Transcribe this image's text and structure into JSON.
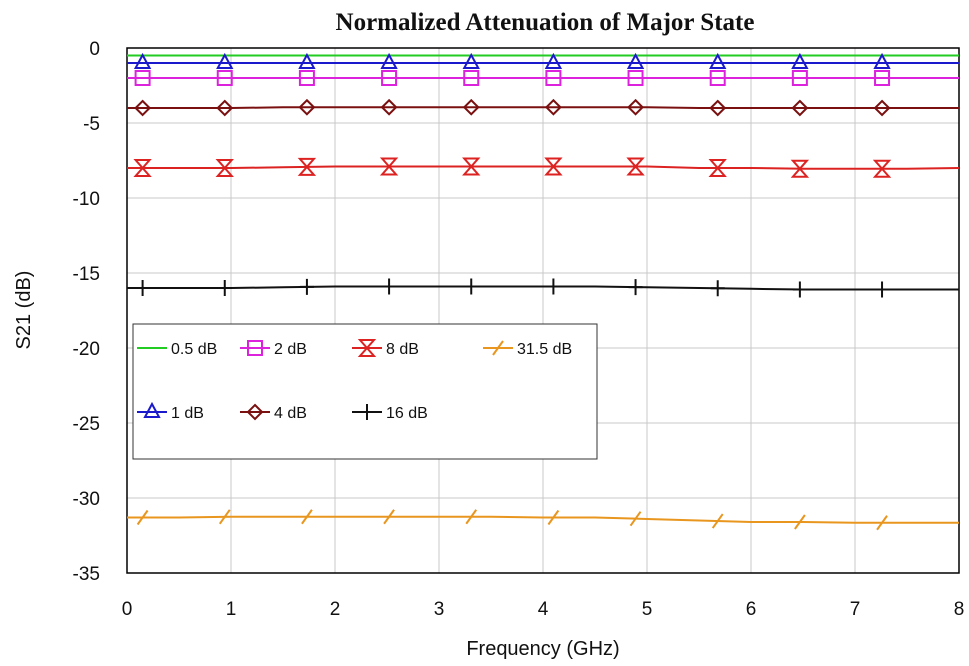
{
  "chart_data": {
    "type": "line",
    "title": "Normalized Attenuation of Major State",
    "xlabel": "Frequency (GHz)",
    "ylabel": "S21 (dB)",
    "xlim": [
      0,
      8
    ],
    "ylim": [
      -35,
      0
    ],
    "x_ticks": [
      "0",
      "1",
      "2",
      "3",
      "4",
      "5",
      "6",
      "7",
      "8"
    ],
    "y_ticks": [
      "0",
      "-5",
      "-10",
      "-15",
      "-20",
      "-25",
      "-30",
      "-35"
    ],
    "grid": true,
    "legend_position": "left",
    "x": [
      0.0,
      0.5,
      1.0,
      1.5,
      2.0,
      2.5,
      3.0,
      3.5,
      4.0,
      4.5,
      5.0,
      5.5,
      6.0,
      6.5,
      7.0,
      7.5,
      8.0
    ],
    "marker_x": [
      0.15,
      0.94,
      1.73,
      2.52,
      3.31,
      4.1,
      4.89,
      5.68,
      6.47,
      7.26
    ],
    "series": [
      {
        "name": "0.5 dB",
        "color": "#22cc22",
        "marker": "none",
        "values": [
          -0.5,
          -0.5,
          -0.5,
          -0.5,
          -0.5,
          -0.5,
          -0.5,
          -0.5,
          -0.5,
          -0.5,
          -0.5,
          -0.5,
          -0.5,
          -0.5,
          -0.5,
          -0.5,
          -0.5
        ]
      },
      {
        "name": "1 dB",
        "color": "#1a1acc",
        "marker": "triangle",
        "values": [
          -1.0,
          -1.0,
          -1.0,
          -1.0,
          -1.0,
          -1.0,
          -1.0,
          -1.0,
          -1.0,
          -1.0,
          -1.0,
          -1.0,
          -1.0,
          -1.0,
          -1.0,
          -1.0,
          -1.0
        ]
      },
      {
        "name": "2 dB",
        "color": "#dd22dd",
        "marker": "square",
        "values": [
          -2.0,
          -2.0,
          -2.0,
          -2.0,
          -2.0,
          -2.0,
          -2.0,
          -2.0,
          -2.0,
          -2.0,
          -2.0,
          -2.0,
          -2.0,
          -2.0,
          -2.0,
          -2.0,
          -2.0
        ]
      },
      {
        "name": "4 dB",
        "color": "#7a1010",
        "marker": "diamond",
        "values": [
          -4.0,
          -4.0,
          -4.0,
          -3.95,
          -3.95,
          -3.95,
          -3.95,
          -3.95,
          -3.95,
          -3.95,
          -3.95,
          -4.0,
          -4.0,
          -4.0,
          -4.0,
          -4.0,
          -4.0
        ]
      },
      {
        "name": "8 dB",
        "color": "#dd2222",
        "marker": "hourglass",
        "values": [
          -8.0,
          -8.0,
          -8.0,
          -7.95,
          -7.9,
          -7.9,
          -7.9,
          -7.9,
          -7.9,
          -7.9,
          -7.9,
          -8.0,
          -8.0,
          -8.05,
          -8.05,
          -8.05,
          -8.0
        ]
      },
      {
        "name": "16 dB",
        "color": "#111111",
        "marker": "plus",
        "values": [
          -16.0,
          -16.0,
          -16.0,
          -15.95,
          -15.9,
          -15.9,
          -15.9,
          -15.9,
          -15.9,
          -15.9,
          -15.95,
          -16.0,
          -16.05,
          -16.1,
          -16.1,
          -16.1,
          -16.1
        ]
      },
      {
        "name": "31.5 dB",
        "color": "#e8961e",
        "marker": "slash",
        "values": [
          -31.3,
          -31.3,
          -31.25,
          -31.25,
          -31.25,
          -31.25,
          -31.25,
          -31.25,
          -31.3,
          -31.3,
          -31.4,
          -31.5,
          -31.6,
          -31.6,
          -31.65,
          -31.65,
          -31.65
        ]
      }
    ],
    "legend_order": [
      [
        "0.5 dB",
        "2 dB",
        "8 dB",
        "31.5 dB"
      ],
      [
        "1 dB",
        "4 dB",
        "16 dB"
      ]
    ]
  }
}
